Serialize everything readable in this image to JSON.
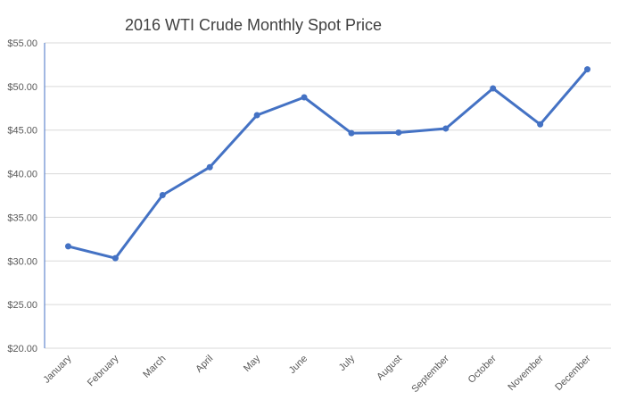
{
  "chart_data": {
    "type": "line",
    "title": "2016 WTI Crude Monthly Spot Price",
    "xlabel": "",
    "ylabel": "",
    "categories": [
      "January",
      "February",
      "March",
      "April",
      "May",
      "June",
      "July",
      "August",
      "September",
      "October",
      "November",
      "December"
    ],
    "series": [
      {
        "values": [
          31.68,
          30.32,
          37.55,
          40.75,
          46.71,
          48.76,
          44.65,
          44.72,
          45.18,
          49.78,
          45.66,
          51.97
        ]
      }
    ],
    "ylim": [
      20,
      55
    ],
    "yticks": [
      20,
      25,
      30,
      35,
      40,
      45,
      50,
      55
    ],
    "ytick_labels": [
      "$20.00",
      "$25.00",
      "$30.00",
      "$35.00",
      "$40.00",
      "$45.00",
      "$50.00",
      "$55.00"
    ],
    "grid": true,
    "legend": "none",
    "colors": {
      "line": "#4472c4",
      "grid": "#d9d9d9",
      "text": "#595959",
      "title": "#404040"
    }
  }
}
